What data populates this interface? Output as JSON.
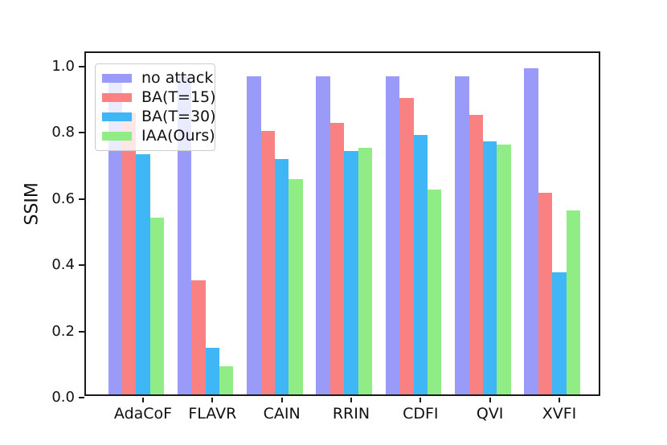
{
  "chart_data": {
    "type": "bar",
    "title": "",
    "xlabel": "",
    "ylabel": "SSIM",
    "categories": [
      "AdaCoF",
      "FLAVR",
      "CAIN",
      "RRIN",
      "CDFI",
      "QVI",
      "XVFI"
    ],
    "series": [
      {
        "name": "no attack",
        "color": "#9a9af8",
        "values": [
          0.96,
          0.96,
          0.96,
          0.96,
          0.96,
          0.96,
          0.985
        ]
      },
      {
        "name": "BA(T=15)",
        "color": "#f98181",
        "values": [
          0.85,
          0.345,
          0.795,
          0.82,
          0.895,
          0.845,
          0.61
        ]
      },
      {
        "name": "BA(T=30)",
        "color": "#3fb7f7",
        "values": [
          0.725,
          0.14,
          0.71,
          0.735,
          0.785,
          0.765,
          0.37
        ]
      },
      {
        "name": "IAA(Ours)",
        "color": "#90ed85",
        "values": [
          0.535,
          0.085,
          0.65,
          0.745,
          0.62,
          0.755,
          0.555
        ]
      }
    ],
    "ylim": [
      0.0,
      1.04
    ],
    "yticks": [
      "0.0",
      "0.2",
      "0.4",
      "0.6",
      "0.8",
      "1.0"
    ],
    "grid": false,
    "legend_position": "upper left"
  }
}
